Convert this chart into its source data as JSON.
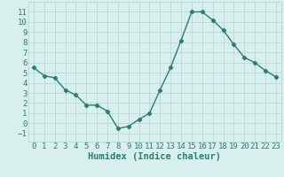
{
  "x": [
    0,
    1,
    2,
    3,
    4,
    5,
    6,
    7,
    8,
    9,
    10,
    11,
    12,
    13,
    14,
    15,
    16,
    17,
    18,
    19,
    20,
    21,
    22,
    23
  ],
  "y": [
    5.5,
    4.7,
    4.5,
    3.3,
    2.8,
    1.8,
    1.8,
    1.2,
    -0.5,
    -0.3,
    0.4,
    1.0,
    3.3,
    5.5,
    8.2,
    11.0,
    11.0,
    10.2,
    9.2,
    7.8,
    6.5,
    6.0,
    5.2,
    4.6
  ],
  "line_color": "#2e7d6e",
  "marker": "D",
  "marker_size": 2.2,
  "bg_color": "#d7f0ee",
  "grid_color": "#b8d8d4",
  "xlabel": "Humidex (Indice chaleur)",
  "xlim": [
    -0.5,
    23.5
  ],
  "ylim": [
    -1.8,
    12.0
  ],
  "xticks": [
    0,
    1,
    2,
    3,
    4,
    5,
    6,
    7,
    8,
    9,
    10,
    11,
    12,
    13,
    14,
    15,
    16,
    17,
    18,
    19,
    20,
    21,
    22,
    23
  ],
  "yticks": [
    -1,
    0,
    1,
    2,
    3,
    4,
    5,
    6,
    7,
    8,
    9,
    10,
    11
  ],
  "xlabel_fontsize": 7.5,
  "tick_fontsize": 6.5,
  "line_width": 1.0
}
